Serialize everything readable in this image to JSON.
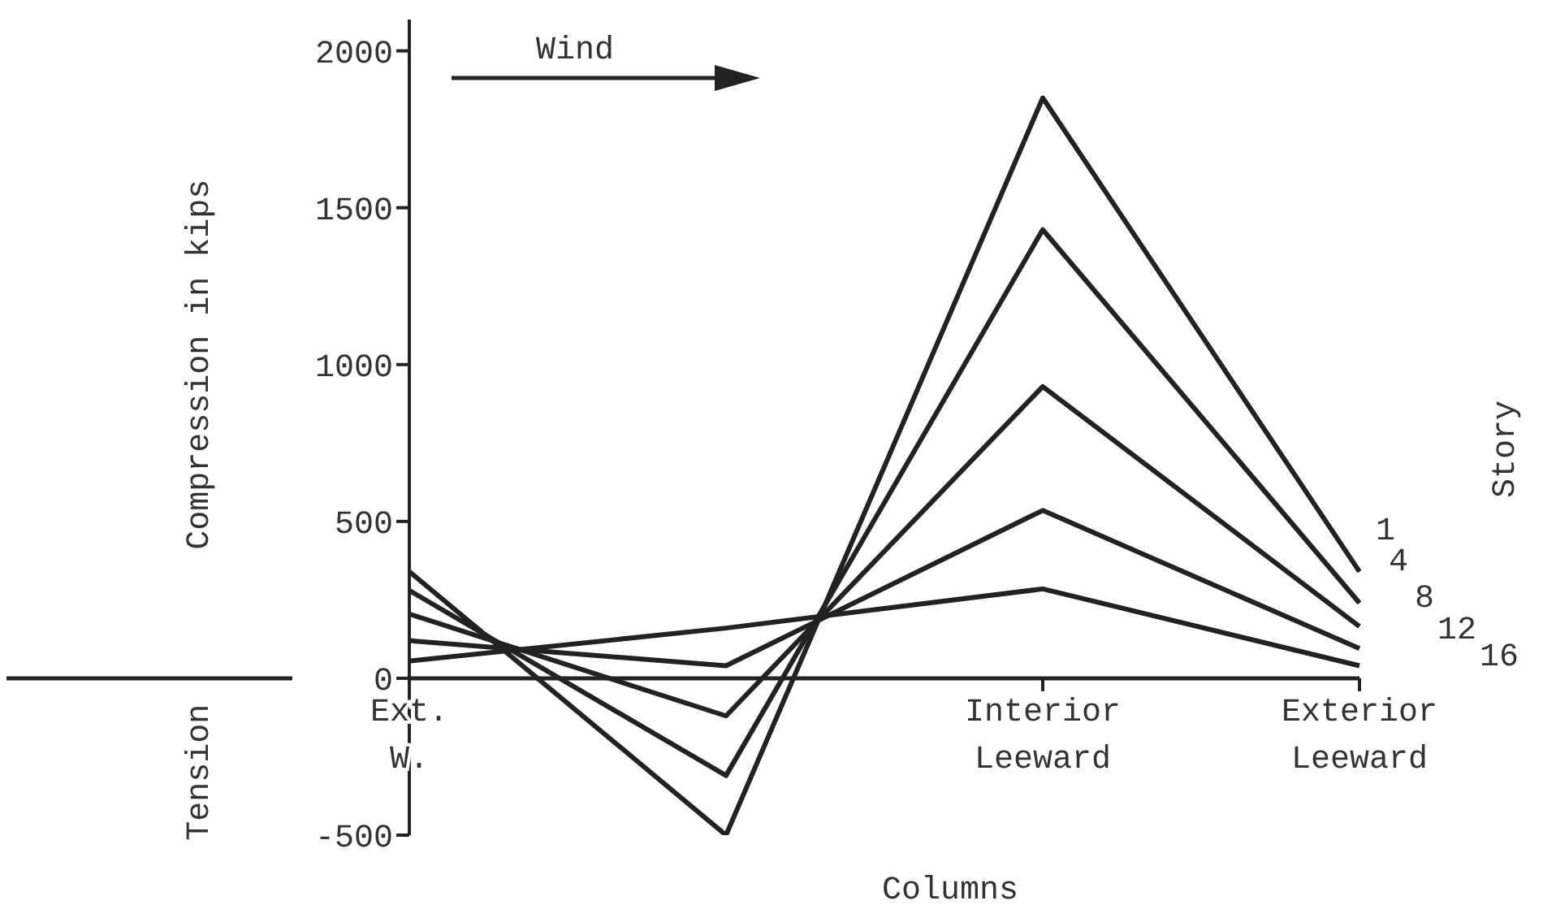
{
  "chart_data": {
    "type": "line",
    "xlabel": "Columns",
    "ylabel": "Compression in kips",
    "legend_title": "Story",
    "annotations": [
      "Wind",
      "Tension"
    ],
    "categories": [
      "Ext. W.",
      null,
      "Interior Leeward",
      "Exterior Leeward"
    ],
    "series": [
      {
        "name": "1",
        "color": "#222222",
        "values": [
          340,
          -500,
          1850,
          340
        ]
      },
      {
        "name": "4",
        "color": "#222222",
        "values": [
          280,
          -310,
          1430,
          240
        ]
      },
      {
        "name": "8",
        "color": "#222222",
        "values": [
          205,
          -120,
          930,
          165
        ]
      },
      {
        "name": "12",
        "color": "#222222",
        "values": [
          120,
          40,
          535,
          95
        ]
      },
      {
        "name": "16",
        "color": "#222222",
        "values": [
          55,
          160,
          285,
          40
        ]
      }
    ],
    "ylim": [
      -500,
      2100
    ],
    "yticks": [
      -500,
      0,
      500,
      1000,
      1500,
      2000
    ]
  }
}
